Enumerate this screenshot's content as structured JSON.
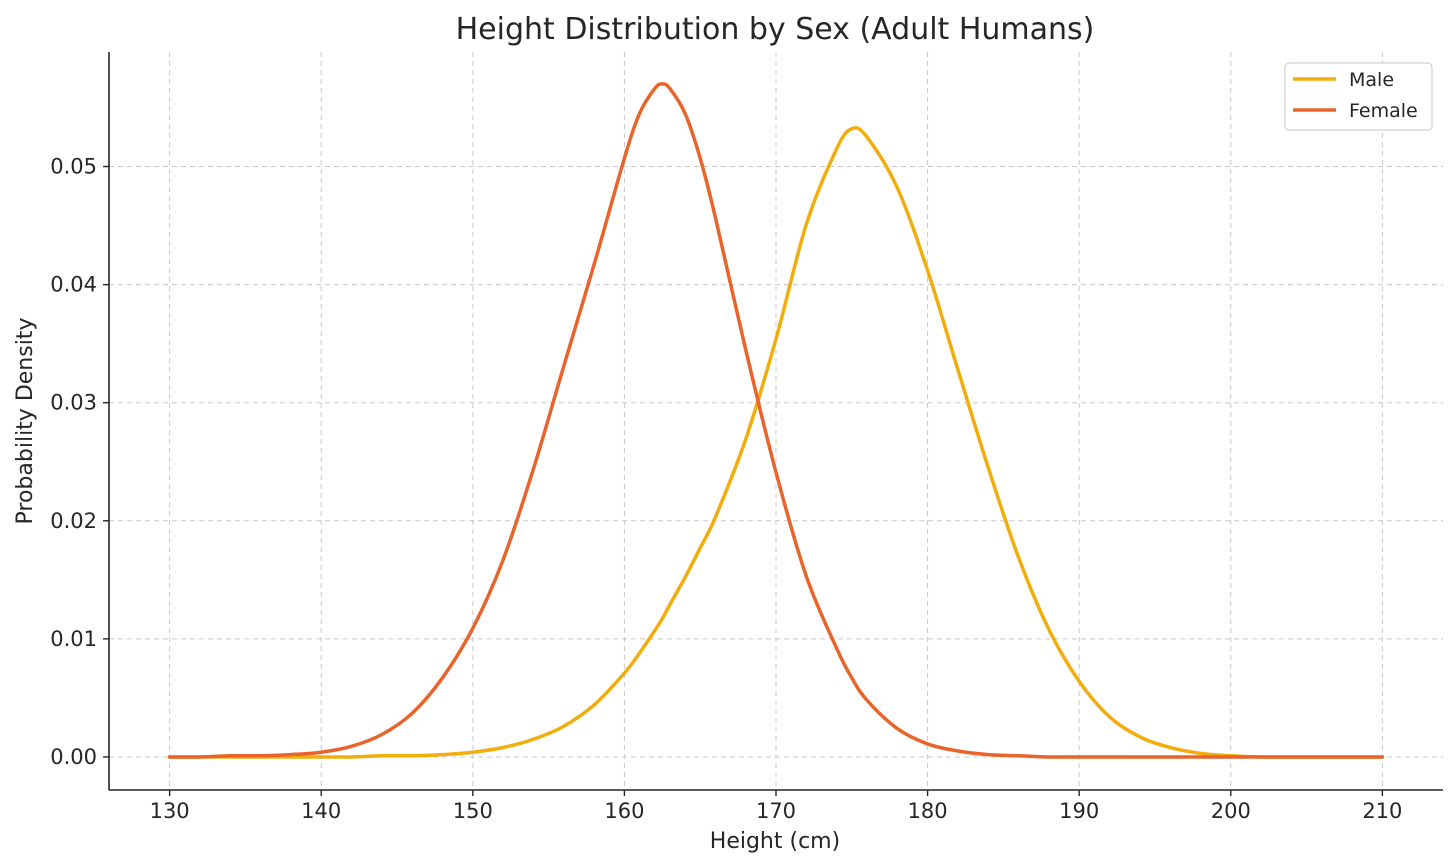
{
  "chart_data": {
    "type": "line",
    "title": "Height Distribution by Sex (Adult Humans)",
    "xlabel": "Height (cm)",
    "ylabel": "Probability Density",
    "xlim": [
      126,
      214
    ],
    "ylim": [
      -0.0028,
      0.0597
    ],
    "x_ticks": [
      130,
      140,
      150,
      160,
      170,
      180,
      190,
      200,
      210
    ],
    "x_tick_labels": [
      "130",
      "140",
      "150",
      "160",
      "170",
      "180",
      "190",
      "200",
      "210"
    ],
    "y_ticks": [
      0.0,
      0.01,
      0.02,
      0.03,
      0.04,
      0.05
    ],
    "y_tick_labels": [
      "0.00",
      "0.01",
      "0.02",
      "0.03",
      "0.04",
      "0.05"
    ],
    "grid": true,
    "legend_position": "top-right",
    "x": [
      130,
      132,
      134,
      136,
      138,
      140,
      142,
      144,
      146,
      148,
      150,
      152,
      154,
      156,
      158,
      160,
      161,
      162,
      162.5,
      163,
      164,
      165,
      166,
      168,
      170,
      172,
      174,
      175,
      176,
      178,
      180,
      182,
      184,
      186,
      188,
      190,
      192,
      194,
      196,
      198,
      200,
      202,
      204,
      206,
      208,
      210
    ],
    "series": [
      {
        "name": "Male",
        "color": "#f2ad0c",
        "values": [
          0.0,
          0.0,
          0.0,
          0.0,
          0.0,
          0.0,
          0.0,
          0.0001,
          0.0001,
          0.0002,
          0.0004,
          0.0008,
          0.0015,
          0.0026,
          0.0044,
          0.0071,
          0.0088,
          0.0107,
          0.0117,
          0.0129,
          0.0152,
          0.0177,
          0.0203,
          0.0269,
          0.0354,
          0.0451,
          0.0515,
          0.0532,
          0.0525,
          0.0482,
          0.0412,
          0.0328,
          0.0245,
          0.0169,
          0.0108,
          0.0064,
          0.0034,
          0.0017,
          0.0008,
          0.0003,
          0.0001,
          0.0,
          0.0,
          0.0,
          0.0,
          0.0
        ]
      },
      {
        "name": "Female",
        "color": "#e8642a",
        "values": [
          0.0,
          0.0,
          0.0001,
          0.0001,
          0.0002,
          0.0004,
          0.0009,
          0.0019,
          0.0037,
          0.0067,
          0.0109,
          0.0167,
          0.0244,
          0.0331,
          0.0417,
          0.0507,
          0.0545,
          0.0566,
          0.057,
          0.0566,
          0.0545,
          0.0507,
          0.0457,
          0.0345,
          0.0241,
          0.0153,
          0.0092,
          0.0067,
          0.0048,
          0.0024,
          0.0011,
          0.0005,
          0.0002,
          0.0001,
          0.0,
          0.0,
          0.0,
          0.0,
          0.0,
          0.0,
          0.0,
          0.0,
          0.0,
          0.0,
          0.0,
          0.0
        ]
      }
    ]
  }
}
